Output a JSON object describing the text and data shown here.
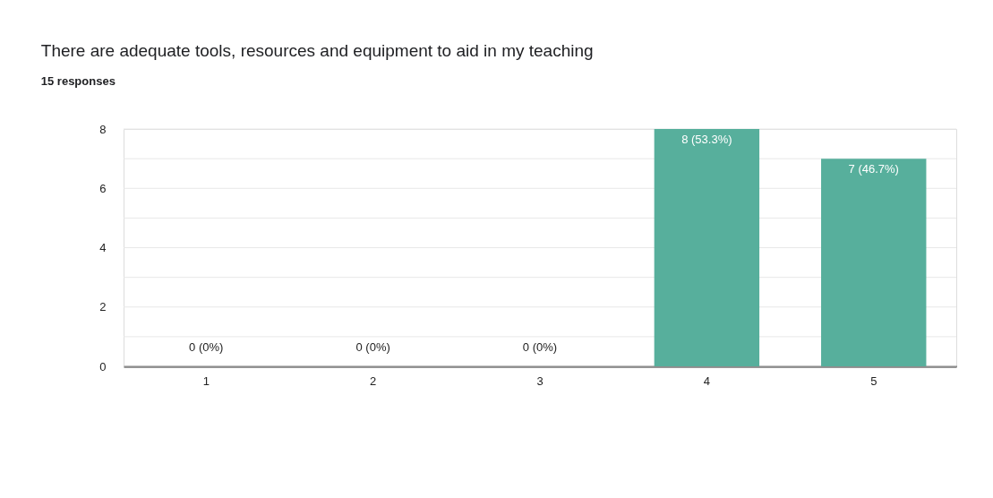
{
  "chart_data": {
    "type": "bar",
    "title": "There are adequate tools, resources and equipment to aid in my teaching",
    "subtitle": "15 responses",
    "categories": [
      "1",
      "2",
      "3",
      "4",
      "5"
    ],
    "values": [
      0,
      0,
      0,
      8,
      7
    ],
    "value_labels": [
      "0 (0%)",
      "0 (0%)",
      "0 (0%)",
      "8 (53.3%)",
      "7 (46.7%)"
    ],
    "color": "#57af9c",
    "ylim": [
      0,
      8
    ],
    "yticks": [
      0,
      {
        "value": 1,
        "label": null
      },
      2,
      {
        "value": 3,
        "label": null
      },
      4,
      {
        "value": 5,
        "label": null
      },
      6,
      {
        "value": 7,
        "label": null
      },
      8
    ],
    "grid": "y"
  }
}
